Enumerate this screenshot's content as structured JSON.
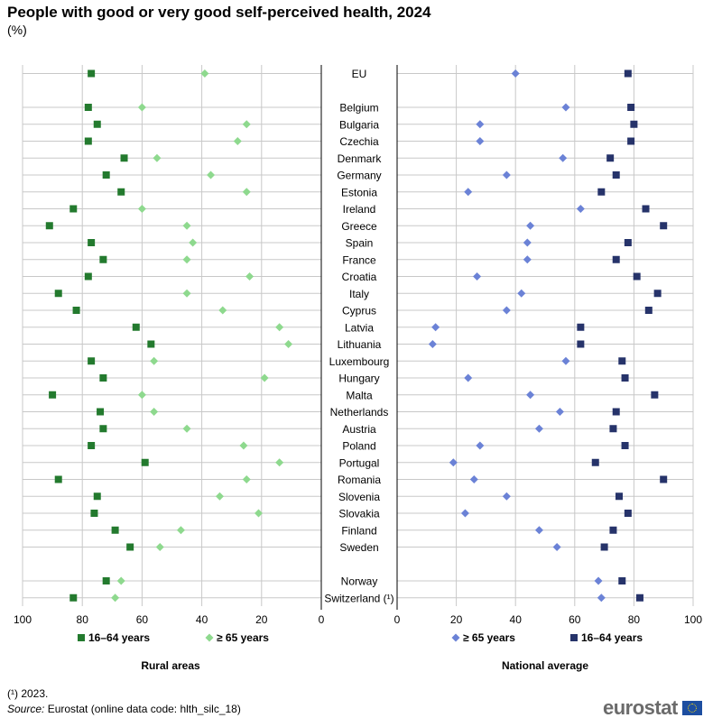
{
  "title": "People with good or very good self-perceived health, 2024",
  "subtitle": "(%)",
  "footnote": "(¹) 2023.",
  "source_label": "Source:",
  "source_text": "Eurostat (online data code: hlth_silc_18)",
  "logo_text": "eurostat",
  "colors": {
    "rural_1664": "#237a2e",
    "rural_65": "#8ed98e",
    "national_65": "#6b82d6",
    "national_1664": "#26336a",
    "grid": "#c8c8c8",
    "axis": "#000000"
  },
  "chart_data": [
    {
      "type": "scatter",
      "panel": "left",
      "title": "Rural areas",
      "xlim": [
        0,
        100
      ],
      "x_reversed": true,
      "xticks": [
        100,
        80,
        60,
        40,
        20,
        0
      ],
      "grid": true,
      "series": [
        {
          "name": "16–64 years",
          "marker": "square",
          "values": [
            77,
            78,
            75,
            78,
            66,
            72,
            67,
            83,
            91,
            77,
            73,
            78,
            88,
            82,
            62,
            57,
            77,
            73,
            90,
            74,
            73,
            77,
            59,
            88,
            75,
            76,
            69,
            64,
            72,
            83
          ]
        },
        {
          "name": "≥ 65 years",
          "marker": "diamond",
          "values": [
            39,
            60,
            25,
            28,
            55,
            37,
            25,
            60,
            45,
            43,
            45,
            24,
            45,
            33,
            14,
            11,
            56,
            19,
            60,
            56,
            45,
            26,
            14,
            25,
            34,
            21,
            47,
            54,
            67,
            69
          ]
        }
      ],
      "legend": [
        "16–64 years",
        "≥ 65 years"
      ]
    },
    {
      "type": "scatter",
      "panel": "right",
      "title": "National average",
      "xlim": [
        0,
        100
      ],
      "xticks": [
        0,
        20,
        40,
        60,
        80,
        100
      ],
      "grid": true,
      "series": [
        {
          "name": "≥ 65 years",
          "marker": "diamond",
          "values": [
            40,
            57,
            28,
            28,
            56,
            37,
            24,
            62,
            45,
            44,
            44,
            27,
            42,
            37,
            13,
            12,
            57,
            24,
            45,
            55,
            48,
            28,
            19,
            26,
            37,
            23,
            48,
            54,
            68,
            69
          ]
        },
        {
          "name": "16–64 years",
          "marker": "square",
          "values": [
            78,
            79,
            80,
            79,
            72,
            74,
            69,
            84,
            90,
            78,
            74,
            81,
            88,
            85,
            62,
            62,
            76,
            77,
            87,
            74,
            73,
            77,
            67,
            90,
            75,
            78,
            73,
            70,
            76,
            82
          ]
        }
      ],
      "legend": [
        "≥ 65 years",
        "16–64 years"
      ]
    }
  ],
  "categories": [
    "EU",
    "",
    "Belgium",
    "Bulgaria",
    "Czechia",
    "Denmark",
    "Germany",
    "Estonia",
    "Ireland",
    "Greece",
    "Spain",
    "France",
    "Croatia",
    "Italy",
    "Cyprus",
    "Latvia",
    "Lithuania",
    "Luxembourg",
    "Hungary",
    "Malta",
    "Netherlands",
    "Austria",
    "Poland",
    "Portugal",
    "Romania",
    "Slovenia",
    "Slovakia",
    "Finland",
    "Sweden",
    "",
    "Norway",
    "Switzerland (¹)"
  ]
}
